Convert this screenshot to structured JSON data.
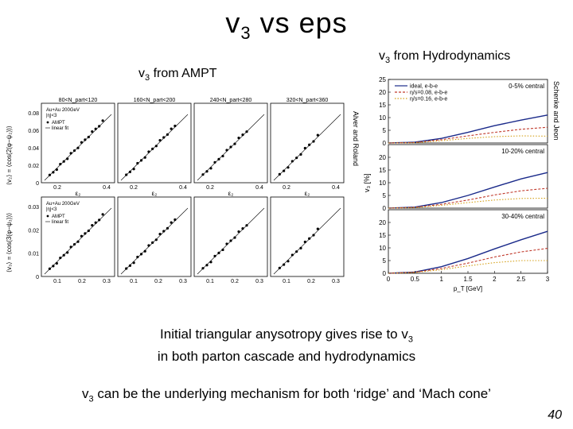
{
  "slide": {
    "title_main": "v",
    "title_sub": "3",
    "title_rest": " vs eps",
    "hydro_label": "v",
    "hydro_sub": "3",
    "hydro_rest": " from Hydrodynamics",
    "ampt_label": "v",
    "ampt_sub": "3",
    "ampt_rest": " from AMPT",
    "caption_line1_pre": "Initial triangular anysotropy gives rise to v",
    "caption_line1_sub": "3",
    "caption_line2": "in both parton cascade and hydrodynamics",
    "conclusion_pre": "v",
    "conclusion_sub": "3",
    "conclusion_rest": " can be the underlying mechanism for both ‘ridge’ and ‘Mach cone’",
    "page_number": "40"
  },
  "credits": {
    "left": "Alver and Roland",
    "right": "Schenke and Jeon"
  },
  "ampt": {
    "centrality_bins": [
      "80<N_part<120",
      "160<N_part<200",
      "240<N_part<280",
      "320<N_part<360"
    ],
    "legend_points": "AMPT",
    "legend_line": "linear fit",
    "system": "Au+Au 200GeV",
    "eta_cut": "|η|<3",
    "top_ylabel": "⟨v₂⟩ = ⟨cos(2(φ−ψ₂))⟩",
    "bottom_ylabel": "⟨v₃⟩ = ⟨cos(3(φ−ψ₃))⟩",
    "top_yticks": [
      "0",
      "0.02",
      "0.04",
      "0.06",
      "0.08"
    ],
    "bottom_yticks": [
      "0",
      "0.01",
      "0.02",
      "0.03"
    ],
    "top_xticks": [
      "0.2",
      "0.4"
    ],
    "bottom_xticks": [
      "0.1",
      "0.2",
      "0.3"
    ],
    "top_xlabel": "ε₂",
    "bottom_xlabel": "ε₃"
  },
  "hydro": {
    "legend": [
      "ideal, e-b-e",
      "η/s=0.08, e-b-e",
      "η/s=0.16, e-b-e"
    ],
    "panels": [
      "0-5% central",
      "10-20% central",
      "30-40% central"
    ],
    "ylabel": "v₃ [%]",
    "xlabel": "p_T [GeV]",
    "xticks": [
      "0",
      "0.5",
      "1",
      "1.5",
      "2",
      "2.5",
      "3"
    ],
    "yticks": [
      "0",
      "5",
      "10",
      "15",
      "20",
      "25"
    ],
    "colors": {
      "ideal": "#1a2a8a",
      "visc08": "#c0392b",
      "visc16": "#d4a017"
    }
  },
  "chart_data": [
    {
      "type": "line",
      "title": "0-5% central",
      "xlabel": "p_T [GeV]",
      "ylabel": "v₃ [%]",
      "x": [
        0,
        0.5,
        1,
        1.5,
        2,
        2.5,
        3
      ],
      "xlim": [
        0,
        3
      ],
      "ylim": [
        0,
        25
      ],
      "series": [
        {
          "name": "ideal, e-b-e",
          "values": [
            0,
            0.3,
            1.8,
            4.2,
            6.8,
            9.0,
            11.0
          ]
        },
        {
          "name": "η/s=0.08, e-b-e",
          "values": [
            0,
            0.2,
            1.3,
            2.8,
            4.2,
            5.4,
            6.2
          ]
        },
        {
          "name": "η/s=0.16, e-b-e",
          "values": [
            0,
            0.1,
            0.9,
            1.8,
            2.5,
            2.8,
            2.7
          ]
        }
      ]
    },
    {
      "type": "line",
      "title": "10-20% central",
      "xlabel": "p_T [GeV]",
      "ylabel": "v₃ [%]",
      "x": [
        0,
        0.5,
        1,
        1.5,
        2,
        2.5,
        3
      ],
      "xlim": [
        0,
        3
      ],
      "ylim": [
        0,
        25
      ],
      "series": [
        {
          "name": "ideal, e-b-e",
          "values": [
            0,
            0.4,
            2.2,
            5.0,
            8.3,
            11.5,
            14.0
          ]
        },
        {
          "name": "η/s=0.08, e-b-e",
          "values": [
            0,
            0.3,
            1.5,
            3.2,
            5.2,
            6.8,
            7.8
          ]
        },
        {
          "name": "η/s=0.16, e-b-e",
          "values": [
            0,
            0.2,
            1.1,
            2.2,
            3.2,
            3.8,
            3.9
          ]
        }
      ]
    },
    {
      "type": "line",
      "title": "30-40% central",
      "xlabel": "p_T [GeV]",
      "ylabel": "v₃ [%]",
      "x": [
        0,
        0.5,
        1,
        1.5,
        2,
        2.5,
        3
      ],
      "xlim": [
        0,
        3
      ],
      "ylim": [
        0,
        25
      ],
      "series": [
        {
          "name": "ideal, e-b-e",
          "values": [
            0,
            0.5,
            2.6,
            5.8,
            9.6,
            13.2,
            16.5
          ]
        },
        {
          "name": "η/s=0.08, e-b-e",
          "values": [
            0,
            0.4,
            1.9,
            4.0,
            6.4,
            8.4,
            9.8
          ]
        },
        {
          "name": "η/s=0.16, e-b-e",
          "values": [
            0,
            0.3,
            1.4,
            2.9,
            4.2,
            5.0,
            5.0
          ]
        }
      ]
    }
  ]
}
